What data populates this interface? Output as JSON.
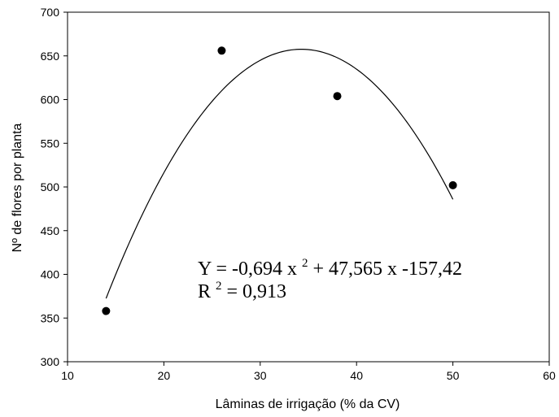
{
  "chart_data": {
    "type": "scatter",
    "title": "",
    "xlabel": "Lâminas de irrigação (% da CV)",
    "ylabel": "Nº de flores por planta",
    "xlim": [
      10,
      60
    ],
    "ylim": [
      300,
      700
    ],
    "xticks": [
      10,
      20,
      30,
      40,
      50,
      60
    ],
    "yticks": [
      300,
      350,
      400,
      450,
      500,
      550,
      600,
      650,
      700
    ],
    "grid": false,
    "series": [
      {
        "type": "scatter",
        "x": [
          14,
          26,
          38,
          50
        ],
        "y": [
          358,
          656,
          604,
          502
        ],
        "color": "#000000"
      }
    ],
    "fit": {
      "type": "quadratic",
      "coefficients": {
        "a": -0.694,
        "b": 47.565,
        "c": -157.42
      },
      "x_range": [
        14,
        50
      ],
      "color": "#000000"
    },
    "annotations": {
      "equation": {
        "y_part": "Y = -0,694 x",
        "x_sup": "2",
        "rest": " + 47,565 x -157,42"
      },
      "r2": {
        "r_part": "R",
        "r_sup": "2",
        "value_part": " = 0,913"
      }
    }
  }
}
